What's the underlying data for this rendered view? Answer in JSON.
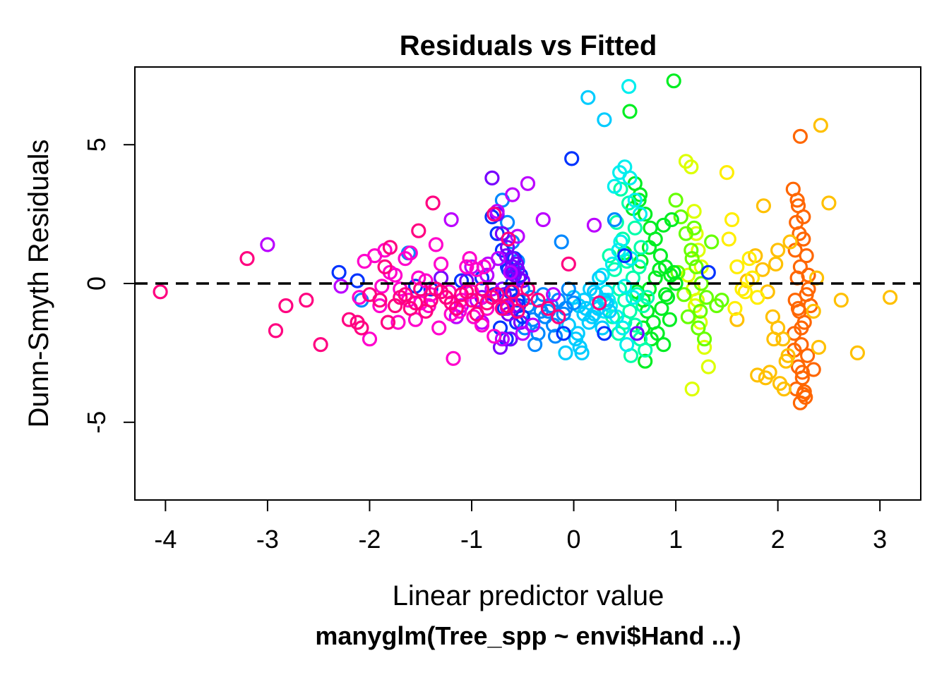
{
  "chart_data": {
    "type": "scatter",
    "title": "Residuals vs Fitted",
    "subtitle": "manyglm(Tree_spp ~ envi$Hand ...)",
    "xlabel": "Linear predictor value",
    "ylabel": "Dunn-Smyth Residuals",
    "xlim": [
      -4.3,
      3.4
    ],
    "ylim": [
      -7.8,
      7.8
    ],
    "xticks": [
      -4,
      -3,
      -2,
      -1,
      0,
      1,
      2,
      3
    ],
    "yticks": [
      -5,
      0,
      5
    ],
    "xtick_labels": [
      "-4",
      "-3",
      "-2",
      "-1",
      "0",
      "1",
      "2",
      "3"
    ],
    "ytick_labels": [
      "-5",
      "0",
      "5"
    ],
    "reference_line": {
      "y": 0,
      "style": "dashed",
      "color": "#000000"
    },
    "grid": false,
    "legend": "none",
    "marker": "open-circle",
    "color_note": "each species drawn in its own rainbow hue",
    "series": [
      {
        "color": "#FF6600",
        "x": [
          2.15,
          2.2,
          2.18,
          2.25,
          2.28,
          2.22,
          2.19,
          2.3,
          2.17,
          2.21,
          2.26,
          2.16,
          2.23,
          2.29,
          2.2,
          2.24,
          2.18,
          2.27,
          2.22,
          2.19,
          2.25,
          2.21,
          2.17,
          2.3,
          2.28,
          2.2,
          2.23,
          2.16,
          2.24,
          2.26,
          2.32,
          2.35,
          2.22,
          2.25
        ],
        "y": [
          3.4,
          2.8,
          2.2,
          1.6,
          1.0,
          0.6,
          0.2,
          -0.2,
          -0.6,
          -1.0,
          -1.4,
          -1.8,
          -2.2,
          -2.6,
          -3.0,
          -3.4,
          -3.8,
          -4.1,
          -4.3,
          3.0,
          2.4,
          1.8,
          1.2,
          0.3,
          -0.4,
          -0.9,
          -1.6,
          -2.4,
          -3.2,
          -3.9,
          -0.8,
          -3.1,
          5.3,
          -4.0
        ]
      },
      {
        "color": "#FFC000",
        "x": [
          1.78,
          1.85,
          1.9,
          1.95,
          2.0,
          2.05,
          2.1,
          2.35,
          2.4,
          2.5,
          1.92,
          2.02,
          1.88,
          2.06,
          2.38,
          2.62,
          2.78,
          3.1,
          1.6,
          1.7,
          1.8,
          2.42,
          1.98,
          1.96,
          2.08,
          1.86,
          2.12,
          2.0
        ],
        "y": [
          1.0,
          0.5,
          -0.3,
          -1.2,
          -1.6,
          -2.0,
          -2.6,
          -1.0,
          -2.3,
          2.9,
          -3.2,
          -3.6,
          -3.4,
          -3.8,
          0.2,
          -0.6,
          -2.5,
          -0.5,
          -1.3,
          0.1,
          -3.3,
          5.7,
          0.7,
          -2.0,
          -2.8,
          2.8,
          1.5,
          1.2
        ]
      },
      {
        "color": "#FFEE00",
        "x": [
          1.5,
          1.55,
          1.6,
          1.68,
          1.72,
          1.75,
          1.8,
          1.65,
          1.52,
          1.58
        ],
        "y": [
          4.0,
          2.3,
          0.6,
          -0.3,
          0.9,
          0.2,
          -0.5,
          -0.2,
          1.6,
          -0.9
        ]
      },
      {
        "color": "#DDFF00",
        "x": [
          1.1,
          1.15,
          1.18,
          1.2,
          1.22,
          1.25,
          1.12,
          1.17,
          1.19,
          1.24,
          1.28,
          1.32,
          1.16,
          1.21
        ],
        "y": [
          4.4,
          4.2,
          2.6,
          1.8,
          1.2,
          0.6,
          0.3,
          -0.2,
          -0.8,
          -1.4,
          -2.3,
          -3.0,
          -3.8,
          -0.6
        ]
      },
      {
        "color": "#66FF00",
        "x": [
          1.0,
          1.05,
          1.1,
          1.15,
          1.2,
          1.25,
          1.3,
          1.35,
          1.4,
          1.45,
          1.12,
          1.18,
          1.22,
          1.08,
          1.28,
          1.16,
          1.24,
          1.02
        ],
        "y": [
          3.0,
          2.4,
          1.8,
          1.2,
          0.6,
          0.0,
          -0.5,
          1.5,
          -0.8,
          -0.6,
          -1.2,
          2.0,
          -1.6,
          -0.4,
          -2.0,
          0.9,
          -1.0,
          0.4
        ]
      },
      {
        "color": "#00EE22",
        "x": [
          0.55,
          0.6,
          0.65,
          0.7,
          0.75,
          0.8,
          0.85,
          0.9,
          0.95,
          1.0,
          0.62,
          0.68,
          0.72,
          0.78,
          0.82,
          0.88,
          0.92,
          0.98,
          0.58,
          0.66,
          0.74,
          0.84,
          0.94,
          0.7,
          0.76,
          0.86,
          0.64,
          0.96,
          0.8,
          0.9,
          0.98,
          0.5,
          0.68,
          0.74,
          0.88
        ],
        "y": [
          6.2,
          3.6,
          3.2,
          2.5,
          2.0,
          1.6,
          1.0,
          0.6,
          0.3,
          0.0,
          -0.3,
          -0.6,
          -1.0,
          -1.4,
          -1.8,
          -2.2,
          -0.5,
          0.4,
          2.7,
          0.8,
          -0.2,
          0.5,
          -1.3,
          -2.8,
          -2.0,
          -0.9,
          3.0,
          2.3,
          0.2,
          -0.4,
          7.3,
          1.1,
          -1.6,
          1.3,
          2.1
        ]
      },
      {
        "color": "#00FFAA",
        "x": [
          0.35,
          0.4,
          0.45,
          0.5,
          0.55,
          0.6,
          0.65,
          0.7,
          0.42,
          0.48,
          0.52,
          0.58,
          0.62,
          0.68,
          0.38,
          0.44,
          0.56,
          0.66,
          0.72,
          0.46,
          0.54,
          0.6,
          0.5,
          0.64
        ],
        "y": [
          1.0,
          0.5,
          -0.2,
          -0.6,
          -1.0,
          -1.5,
          -2.0,
          -2.4,
          2.2,
          1.6,
          0.8,
          0.2,
          -0.4,
          -0.8,
          -1.2,
          -1.8,
          -2.6,
          1.3,
          -0.5,
          3.4,
          2.9,
          2.0,
          -1.4,
          0.6
        ]
      },
      {
        "color": "#00EEEE",
        "x": [
          0.4,
          0.45,
          0.5,
          0.55,
          0.6,
          0.65,
          0.28,
          0.32,
          0.36,
          0.42,
          0.48,
          0.52,
          0.58,
          0.3,
          0.38,
          0.46,
          0.56,
          0.62,
          0.54,
          0.34,
          0.44,
          0.5
        ],
        "y": [
          3.5,
          4.0,
          4.2,
          3.8,
          3.0,
          2.5,
          0.3,
          -0.3,
          -0.8,
          -1.2,
          -1.6,
          -2.2,
          -0.5,
          -1.0,
          0.7,
          1.5,
          0.9,
          -1.8,
          7.1,
          -0.6,
          1.2,
          -0.1
        ]
      },
      {
        "color": "#00CCFF",
        "x": [
          0.0,
          0.05,
          0.1,
          0.15,
          0.2,
          0.25,
          0.3,
          0.35,
          -0.05,
          0.02,
          0.08,
          0.12,
          0.18,
          0.22,
          0.28,
          0.32,
          0.14,
          0.3,
          0.06,
          0.16,
          0.24,
          0.04,
          0.2,
          -0.08,
          0.1
        ],
        "y": [
          -0.5,
          -0.8,
          -1.1,
          -1.4,
          -0.3,
          0.2,
          -0.6,
          -1.0,
          -1.5,
          -2.0,
          -2.5,
          -0.9,
          -1.2,
          -0.4,
          -1.6,
          -0.7,
          6.7,
          5.9,
          -2.3,
          -0.2,
          -0.9,
          -1.8,
          -1.1,
          -2.5,
          -0.6
        ]
      },
      {
        "color": "#0088FF",
        "x": [
          -0.7,
          -0.65,
          -0.6,
          -0.55,
          -0.5,
          -0.45,
          -0.4,
          -0.35,
          -0.3,
          -0.25,
          -0.2,
          -0.15,
          -0.1,
          -0.05,
          0.0,
          -0.62,
          -0.48,
          -0.38,
          -0.28,
          -0.18,
          -0.08,
          0.4,
          -0.58,
          -0.42,
          -0.32,
          -0.22,
          -0.12,
          -1.62,
          -2.08
        ],
        "y": [
          3.0,
          2.2,
          1.5,
          0.8,
          -0.2,
          -0.8,
          -1.3,
          -1.8,
          -0.4,
          -1.0,
          -1.5,
          -0.6,
          -1.1,
          -0.2,
          -0.7,
          -2.0,
          -1.6,
          -2.2,
          -1.2,
          -1.9,
          -0.9,
          2.3,
          0.4,
          -0.5,
          -1.0,
          -0.8,
          1.5,
          1.1,
          -0.6
        ]
      },
      {
        "color": "#0033FF",
        "x": [
          -0.8,
          -0.75,
          -0.7,
          -0.65,
          -0.6,
          -0.55,
          -0.5,
          -0.72,
          -0.62,
          -0.52,
          -0.68,
          -0.58,
          -0.66,
          -0.56,
          -2.3,
          -2.12,
          -1.4,
          -1.55,
          -1.1,
          -0.9,
          -0.02,
          -0.1,
          0.3,
          0.5,
          1.32,
          -0.78,
          -0.64,
          -0.54
        ],
        "y": [
          2.4,
          1.8,
          1.2,
          0.6,
          0.0,
          -0.6,
          -1.2,
          -1.6,
          -0.3,
          0.3,
          -0.9,
          0.9,
          -2.0,
          -1.4,
          0.4,
          0.1,
          -0.2,
          -0.1,
          0.1,
          0.2,
          4.5,
          -1.8,
          -1.8,
          1.0,
          0.4,
          -0.4,
          0.5,
          -0.8
        ]
      },
      {
        "color": "#7700FF",
        "x": [
          -0.8,
          -0.75,
          -0.7,
          -0.65,
          -0.6,
          -0.55,
          -0.5,
          -0.68,
          -0.58,
          -0.52,
          -0.62,
          -0.72,
          -0.56,
          -0.66,
          -0.6,
          -0.54,
          -0.64,
          -0.7,
          -0.6,
          -0.58,
          -1.3,
          -1.05,
          -0.9,
          0.62
        ],
        "y": [
          3.8,
          2.5,
          1.8,
          1.3,
          0.9,
          0.5,
          0.1,
          -0.4,
          -0.8,
          -1.4,
          -2.0,
          -2.3,
          0.7,
          1.0,
          0.4,
          0.2,
          -1.1,
          -0.2,
          0.6,
          0.3,
          0.2,
          0.1,
          -0.5,
          -1.8
        ]
      },
      {
        "color": "#BB00FF",
        "x": [
          -3.0,
          -2.28,
          -1.2,
          -1.0,
          -0.85,
          -0.6,
          -0.75,
          -0.55,
          -0.45,
          -0.3,
          -0.65,
          -0.9,
          -1.1,
          -0.8,
          -0.7,
          -0.5,
          -0.4,
          -0.2,
          -0.95,
          -1.15,
          0.2,
          -0.62,
          -0.74,
          -0.84
        ],
        "y": [
          1.4,
          -0.1,
          2.3,
          0.6,
          0.3,
          3.2,
          2.6,
          1.7,
          3.6,
          2.3,
          -0.9,
          -1.4,
          -0.8,
          -0.2,
          -2.0,
          -1.8,
          -1.5,
          -0.4,
          -0.6,
          -1.2,
          2.1,
          0.4,
          0.9,
          0.7
        ]
      },
      {
        "color": "#FF00CC",
        "x": [
          -2.1,
          -2.05,
          -1.95,
          -1.9,
          -1.85,
          -1.8,
          -1.7,
          -1.65,
          -1.6,
          -1.5,
          -1.4,
          -1.3,
          -1.2,
          -1.1,
          -1.0,
          -0.95,
          -0.9,
          -0.85,
          -1.75,
          -1.55,
          -1.45,
          -1.35,
          -1.25,
          -1.15,
          -1.05,
          -0.98,
          -2.0,
          -1.88,
          -1.72,
          -1.62,
          -1.52,
          -1.42,
          -1.32,
          -1.22,
          -1.12,
          -1.02,
          -0.88,
          -0.78,
          -1.18
        ],
        "y": [
          -0.5,
          0.8,
          1.0,
          -0.8,
          1.2,
          0.4,
          -0.2,
          0.9,
          1.1,
          -0.7,
          -0.4,
          0.7,
          -1.1,
          -0.6,
          -0.3,
          0.5,
          -1.5,
          -0.9,
          0.3,
          -1.3,
          0.1,
          1.4,
          -0.5,
          -0.9,
          0.6,
          -1.2,
          -2.0,
          -0.1,
          -1.4,
          -0.6,
          0.2,
          -0.8,
          -1.6,
          -0.3,
          -1.0,
          0.9,
          0.6,
          -1.9,
          -2.7
        ]
      },
      {
        "color": "#FF0080",
        "x": [
          -4.05,
          -3.2,
          -2.92,
          -2.82,
          -2.62,
          -2.48,
          -2.2,
          -2.12,
          -2.08,
          -2.0,
          -1.9,
          -1.8,
          -1.7,
          -1.6,
          -1.5,
          -1.4,
          -1.3,
          -1.2,
          -1.1,
          -1.0,
          -0.9,
          -0.8,
          -0.7,
          -0.6,
          -0.5,
          -1.85,
          -1.75,
          -1.65,
          -1.55,
          -1.45,
          -1.35,
          -1.25,
          -1.15,
          -1.05,
          -0.95,
          -0.85,
          -0.75,
          -0.65,
          -0.55,
          -0.45,
          -0.35,
          -0.25,
          -0.15,
          -0.05,
          0.25,
          -1.52,
          -1.38,
          -0.78,
          -0.64,
          -1.82
        ],
        "y": [
          -0.3,
          0.9,
          -1.7,
          -0.8,
          -0.6,
          -2.2,
          -1.3,
          -1.4,
          -1.6,
          -0.4,
          -0.6,
          1.3,
          -0.5,
          -0.9,
          -0.2,
          -0.6,
          -0.3,
          -0.7,
          -0.4,
          -0.6,
          -0.2,
          -0.5,
          -0.9,
          -0.3,
          -0.6,
          0.6,
          -0.8,
          -0.4,
          -0.7,
          -1.0,
          -0.2,
          -0.5,
          -0.9,
          -0.3,
          -1.1,
          -0.7,
          -0.4,
          -0.8,
          -1.0,
          -0.2,
          -0.6,
          -0.9,
          -1.2,
          0.7,
          -0.7,
          1.9,
          2.9,
          2.5,
          1.6,
          -1.4
        ]
      }
    ]
  }
}
